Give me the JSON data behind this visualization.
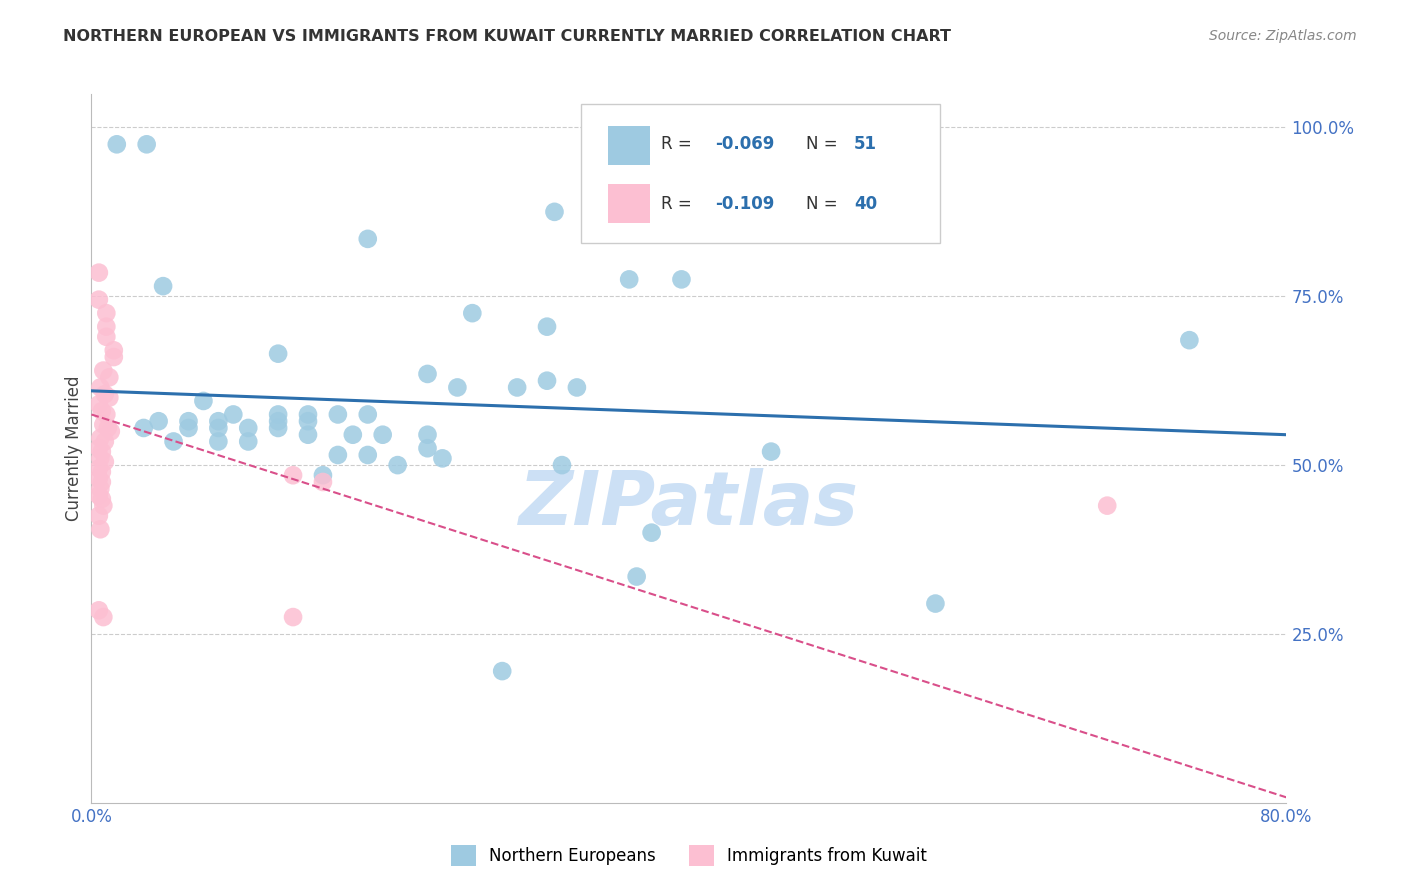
{
  "title": "NORTHERN EUROPEAN VS IMMIGRANTS FROM KUWAIT CURRENTLY MARRIED CORRELATION CHART",
  "source": "Source: ZipAtlas.com",
  "ylabel": "Currently Married",
  "watermark": "ZIPatlas",
  "legend_blue_R": "R = -0.069",
  "legend_blue_N": "N =  51",
  "legend_pink_R": "R = -0.109",
  "legend_pink_N": "N =  40",
  "blue_scatter": [
    [
      0.017,
      0.975
    ],
    [
      0.037,
      0.975
    ],
    [
      0.185,
      0.835
    ],
    [
      0.048,
      0.765
    ],
    [
      0.31,
      0.875
    ],
    [
      0.36,
      0.775
    ],
    [
      0.395,
      0.775
    ],
    [
      0.255,
      0.725
    ],
    [
      0.305,
      0.705
    ],
    [
      0.125,
      0.665
    ],
    [
      0.225,
      0.635
    ],
    [
      0.245,
      0.615
    ],
    [
      0.285,
      0.615
    ],
    [
      0.305,
      0.625
    ],
    [
      0.325,
      0.615
    ],
    [
      0.075,
      0.595
    ],
    [
      0.095,
      0.575
    ],
    [
      0.125,
      0.575
    ],
    [
      0.145,
      0.575
    ],
    [
      0.165,
      0.575
    ],
    [
      0.185,
      0.575
    ],
    [
      0.045,
      0.565
    ],
    [
      0.065,
      0.565
    ],
    [
      0.085,
      0.565
    ],
    [
      0.125,
      0.565
    ],
    [
      0.145,
      0.565
    ],
    [
      0.035,
      0.555
    ],
    [
      0.065,
      0.555
    ],
    [
      0.085,
      0.555
    ],
    [
      0.105,
      0.555
    ],
    [
      0.125,
      0.555
    ],
    [
      0.145,
      0.545
    ],
    [
      0.175,
      0.545
    ],
    [
      0.195,
      0.545
    ],
    [
      0.225,
      0.545
    ],
    [
      0.055,
      0.535
    ],
    [
      0.085,
      0.535
    ],
    [
      0.105,
      0.535
    ],
    [
      0.225,
      0.525
    ],
    [
      0.165,
      0.515
    ],
    [
      0.185,
      0.515
    ],
    [
      0.235,
      0.51
    ],
    [
      0.205,
      0.5
    ],
    [
      0.155,
      0.485
    ],
    [
      0.315,
      0.5
    ],
    [
      0.455,
      0.52
    ],
    [
      0.735,
      0.685
    ],
    [
      0.565,
      0.295
    ],
    [
      0.375,
      0.4
    ],
    [
      0.365,
      0.335
    ],
    [
      0.275,
      0.195
    ]
  ],
  "pink_scatter": [
    [
      0.005,
      0.785
    ],
    [
      0.005,
      0.745
    ],
    [
      0.01,
      0.725
    ],
    [
      0.01,
      0.705
    ],
    [
      0.01,
      0.69
    ],
    [
      0.015,
      0.67
    ],
    [
      0.015,
      0.66
    ],
    [
      0.008,
      0.64
    ],
    [
      0.012,
      0.63
    ],
    [
      0.006,
      0.615
    ],
    [
      0.009,
      0.605
    ],
    [
      0.012,
      0.6
    ],
    [
      0.005,
      0.59
    ],
    [
      0.007,
      0.58
    ],
    [
      0.01,
      0.575
    ],
    [
      0.008,
      0.56
    ],
    [
      0.011,
      0.555
    ],
    [
      0.013,
      0.55
    ],
    [
      0.006,
      0.54
    ],
    [
      0.009,
      0.535
    ],
    [
      0.005,
      0.525
    ],
    [
      0.007,
      0.52
    ],
    [
      0.006,
      0.51
    ],
    [
      0.009,
      0.505
    ],
    [
      0.005,
      0.495
    ],
    [
      0.007,
      0.49
    ],
    [
      0.005,
      0.48
    ],
    [
      0.007,
      0.475
    ],
    [
      0.006,
      0.465
    ],
    [
      0.005,
      0.455
    ],
    [
      0.007,
      0.45
    ],
    [
      0.008,
      0.44
    ],
    [
      0.005,
      0.425
    ],
    [
      0.006,
      0.405
    ],
    [
      0.135,
      0.485
    ],
    [
      0.155,
      0.475
    ],
    [
      0.005,
      0.285
    ],
    [
      0.008,
      0.275
    ],
    [
      0.135,
      0.275
    ],
    [
      0.68,
      0.44
    ]
  ],
  "blue_line": {
    "x0": 0.0,
    "y0": 0.61,
    "x1": 0.8,
    "y1": 0.545
  },
  "pink_line": {
    "x0": 0.0,
    "y0": 0.575,
    "x1": 0.8,
    "y1": 0.008
  },
  "xlim": [
    0.0,
    0.8
  ],
  "ylim": [
    0.0,
    1.05
  ],
  "bg_color": "#ffffff",
  "blue_scatter_color": "#9ecae1",
  "pink_scatter_color": "#fcbfd2",
  "blue_line_color": "#2c6fad",
  "pink_line_color": "#d94f8a",
  "grid_color": "#cccccc",
  "title_color": "#333333",
  "right_tick_color": "#4472c4",
  "watermark_color": "#cce0f5"
}
